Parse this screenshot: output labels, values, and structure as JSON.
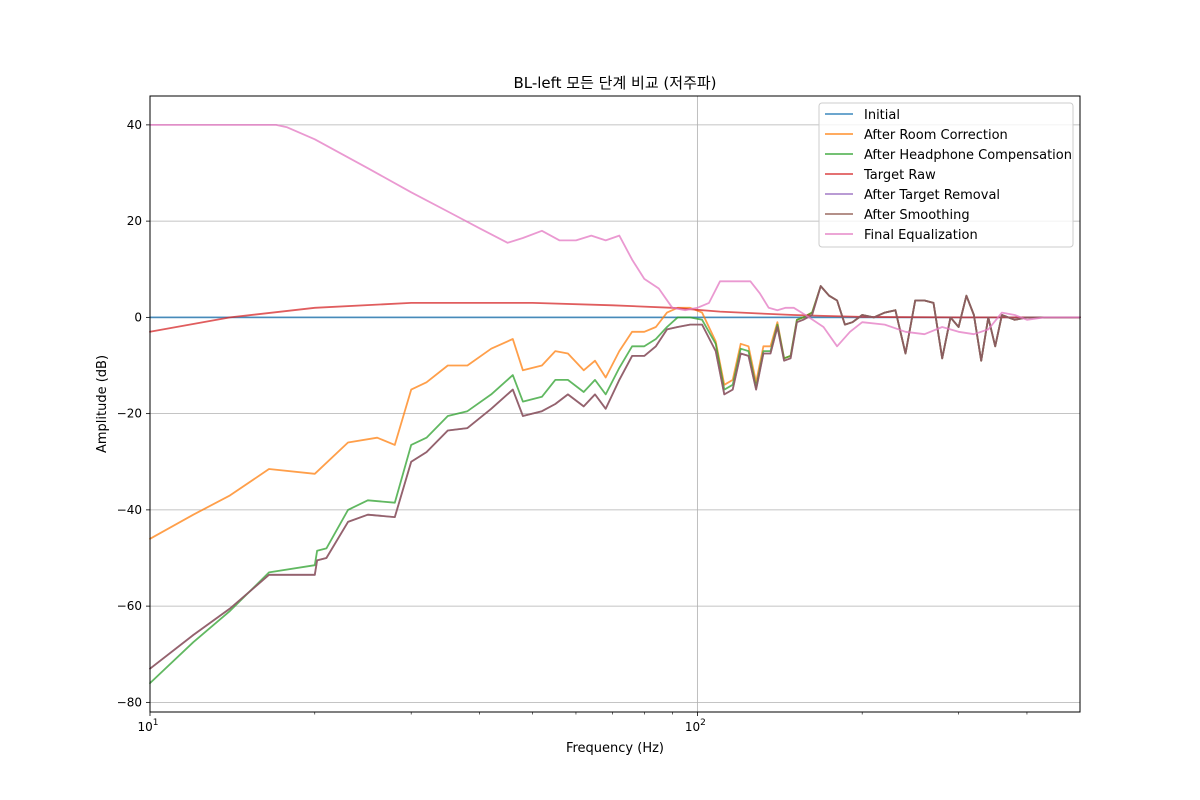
{
  "chart_data": {
    "type": "line",
    "title": "BL-left 모든 단계 비교 (저주파)",
    "xlabel": "Frequency (Hz)",
    "ylabel": "Amplitude (dB)",
    "xscale": "log",
    "xlim": [
      10,
      500
    ],
    "ylim": [
      -82,
      46
    ],
    "grid": true,
    "legend_position": "top-right",
    "x_ticks": [
      {
        "value": 10,
        "base": "10",
        "exp": "1"
      },
      {
        "value": 100,
        "base": "10",
        "exp": "2"
      }
    ],
    "y_ticks": [
      {
        "value": 40,
        "label": "40"
      },
      {
        "value": 20,
        "label": "20"
      },
      {
        "value": 0,
        "label": "0"
      },
      {
        "value": -20,
        "label": "−20"
      },
      {
        "value": -40,
        "label": "−40"
      },
      {
        "value": -60,
        "label": "−60"
      },
      {
        "value": -80,
        "label": "−80"
      }
    ],
    "series": [
      {
        "name": "Initial",
        "color": "#1f77b4",
        "x": [
          10,
          100,
          500
        ],
        "y": [
          0,
          0,
          0
        ]
      },
      {
        "name": "After Room Correction",
        "color": "#ff7f0e",
        "x": [
          10,
          12,
          14,
          16.5,
          20,
          23,
          26,
          28,
          30,
          32,
          35,
          38,
          42,
          46,
          48,
          52,
          55,
          58,
          62,
          65,
          68,
          72,
          76,
          80,
          84,
          88,
          92,
          97,
          102,
          108,
          112,
          116,
          120,
          124,
          128,
          132,
          136,
          140,
          144,
          148,
          152,
          156,
          162,
          168,
          174,
          180,
          186,
          192,
          200,
          210,
          220,
          230,
          240,
          250,
          260,
          270,
          280,
          290,
          300,
          310,
          320,
          330,
          340,
          350,
          360,
          380,
          400,
          420,
          450,
          480,
          500
        ],
        "y": [
          -46,
          -41,
          -37,
          -31.5,
          -32.5,
          -26,
          -25,
          -26.5,
          -15,
          -13.5,
          -10,
          -10,
          -6.5,
          -4.5,
          -11,
          -10,
          -7,
          -7.5,
          -11,
          -9,
          -12.5,
          -7,
          -3,
          -3,
          -2,
          1,
          2,
          2,
          1,
          -5,
          -14,
          -13,
          -5.5,
          -6,
          -13.5,
          -6,
          -6,
          -1,
          -8.5,
          -8,
          -0.5,
          0,
          1,
          6.5,
          4.5,
          3.5,
          -1.5,
          -1,
          0.5,
          0,
          1,
          1.5,
          -7.5,
          3.5,
          3.5,
          3,
          -8.5,
          0,
          -2,
          4.5,
          0.5,
          -9,
          0,
          -6,
          0.5,
          -0.5,
          0,
          0,
          0,
          0,
          0
        ]
      },
      {
        "name": "After Headphone Compensation",
        "color": "#2ca02c",
        "x": [
          10,
          12,
          14,
          16.5,
          20,
          20.2,
          21,
          23,
          25,
          28,
          30,
          32,
          35,
          38,
          42,
          46,
          48,
          52,
          55,
          58,
          62,
          65,
          68,
          72,
          76,
          80,
          84,
          88,
          92,
          97,
          102,
          108,
          112,
          116,
          120,
          124,
          128,
          132,
          136,
          140,
          144,
          148,
          152,
          156,
          162,
          168,
          174,
          180,
          186,
          192,
          200,
          210,
          220,
          230,
          240,
          250,
          260,
          270,
          280,
          290,
          300,
          310,
          320,
          330,
          340,
          350,
          360,
          380,
          400,
          420,
          450,
          480,
          500
        ],
        "y": [
          -76,
          -67.5,
          -61,
          -53,
          -51.5,
          -48.5,
          -48,
          -40,
          -38,
          -38.5,
          -26.5,
          -25,
          -20.5,
          -19.5,
          -16,
          -12,
          -17.5,
          -16.5,
          -13,
          -13,
          -15.5,
          -13,
          -16,
          -10.5,
          -6,
          -6,
          -4.5,
          -2,
          0,
          0,
          -0.5,
          -5.5,
          -15,
          -14,
          -6.5,
          -7,
          -14.5,
          -7,
          -7,
          -1.5,
          -8.5,
          -8,
          -0.5,
          0,
          1,
          6.5,
          4.5,
          3.5,
          -1.5,
          -1,
          0.5,
          0,
          1,
          1.5,
          -7.5,
          3.5,
          3.5,
          3,
          -8.5,
          0,
          -2,
          4.5,
          0.5,
          -9,
          0,
          -6,
          0.5,
          -0.5,
          0,
          0,
          0,
          0,
          0
        ]
      },
      {
        "name": "Target Raw",
        "color": "#d62728",
        "x": [
          10,
          14,
          20,
          30,
          50,
          70,
          90,
          110,
          130,
          150,
          170,
          200,
          300,
          500
        ],
        "y": [
          -3,
          0,
          2,
          3,
          3,
          2.5,
          2,
          1.2,
          0.8,
          0.5,
          0.3,
          0.1,
          0,
          0
        ]
      },
      {
        "name": "After Target Removal",
        "color": "#9467bd",
        "x": [
          10,
          12,
          14,
          16.5,
          20,
          20.2,
          21,
          23,
          25,
          28,
          30,
          32,
          35,
          38,
          42,
          46,
          48,
          52,
          55,
          58,
          62,
          65,
          68,
          72,
          76,
          80,
          84,
          88,
          92,
          97,
          102,
          108,
          112,
          116,
          120,
          124,
          128,
          132,
          136,
          140,
          144,
          148,
          152,
          156,
          162,
          168,
          174,
          180,
          186,
          192,
          200,
          210,
          220,
          230,
          240,
          250,
          260,
          270,
          280,
          290,
          300,
          310,
          320,
          330,
          340,
          350,
          360,
          380,
          400,
          420,
          450,
          480,
          500
        ],
        "y": [
          -73,
          -66,
          -60.5,
          -53.5,
          -53.5,
          -50.5,
          -50,
          -42.5,
          -41,
          -41.5,
          -30,
          -28,
          -23.5,
          -23,
          -19,
          -15,
          -20.5,
          -19.5,
          -18,
          -16,
          -18.5,
          -16,
          -19,
          -13,
          -8,
          -8,
          -6,
          -2.5,
          -2,
          -1.5,
          -1.5,
          -7,
          -16,
          -15,
          -7.5,
          -8,
          -15,
          -7.5,
          -7.5,
          -2,
          -9,
          -8.5,
          -1,
          -0.5,
          0.5,
          6.5,
          4.5,
          3.5,
          -1.5,
          -1,
          0.5,
          0,
          1,
          1.5,
          -7.5,
          3.5,
          3.5,
          3,
          -8.5,
          0,
          -2,
          4.5,
          0.5,
          -9,
          0,
          -6,
          0.5,
          -0.5,
          0,
          0,
          0,
          0,
          0
        ]
      },
      {
        "name": "After Smoothing",
        "color": "#8c564b",
        "x": [
          10,
          12,
          14,
          16.5,
          20,
          20.2,
          21,
          23,
          25,
          28,
          30,
          32,
          35,
          38,
          42,
          46,
          48,
          52,
          55,
          58,
          62,
          65,
          68,
          72,
          76,
          80,
          84,
          88,
          92,
          97,
          102,
          108,
          112,
          116,
          120,
          124,
          128,
          132,
          136,
          140,
          144,
          148,
          152,
          156,
          162,
          168,
          174,
          180,
          186,
          192,
          200,
          210,
          220,
          230,
          240,
          250,
          260,
          270,
          280,
          290,
          300,
          310,
          320,
          330,
          340,
          350,
          360,
          380,
          400,
          420,
          450,
          480,
          500
        ],
        "y": [
          -73,
          -66,
          -60.5,
          -53.5,
          -53.5,
          -50.5,
          -50,
          -42.5,
          -41,
          -41.5,
          -30,
          -28,
          -23.5,
          -23,
          -19,
          -15,
          -20.5,
          -19.5,
          -18,
          -16,
          -18.5,
          -16,
          -19,
          -13,
          -8,
          -8,
          -6,
          -2.5,
          -2,
          -1.5,
          -1.5,
          -7,
          -16,
          -15,
          -7.5,
          -8,
          -15,
          -7.5,
          -7.5,
          -2,
          -9,
          -8.5,
          -1,
          -0.5,
          0.5,
          6.5,
          4.5,
          3.5,
          -1.5,
          -1,
          0.5,
          0,
          1,
          1.5,
          -7.5,
          3.5,
          3.5,
          3,
          -8.5,
          0,
          -2,
          4.5,
          0.5,
          -9,
          0,
          -6,
          0.5,
          -0.5,
          0,
          0,
          0,
          0,
          0
        ]
      },
      {
        "name": "Final Equalization",
        "color": "#e377c2",
        "x": [
          10,
          14,
          17,
          17.8,
          20,
          25,
          30,
          35,
          40,
          45,
          48,
          52,
          56,
          60,
          64,
          68,
          72,
          76,
          80,
          85,
          90,
          95,
          100,
          105,
          110,
          115,
          120,
          125,
          130,
          135,
          140,
          145,
          150,
          155,
          160,
          170,
          180,
          190,
          200,
          220,
          240,
          260,
          280,
          300,
          320,
          340,
          360,
          380,
          400,
          430,
          460,
          500
        ],
        "y": [
          40,
          40,
          40,
          39.5,
          37,
          31,
          26,
          22,
          18.5,
          15.5,
          16.5,
          18,
          16,
          16,
          17,
          16,
          17,
          12,
          8,
          6,
          2,
          1.5,
          2,
          3,
          7.5,
          7.5,
          7.5,
          7.5,
          5,
          2,
          1.5,
          2,
          2,
          1,
          0,
          -2,
          -6,
          -3,
          -1,
          -1.5,
          -3,
          -3.5,
          -2,
          -3,
          -3.5,
          -2.5,
          1,
          0.5,
          -0.5,
          0,
          0,
          0
        ]
      }
    ]
  }
}
